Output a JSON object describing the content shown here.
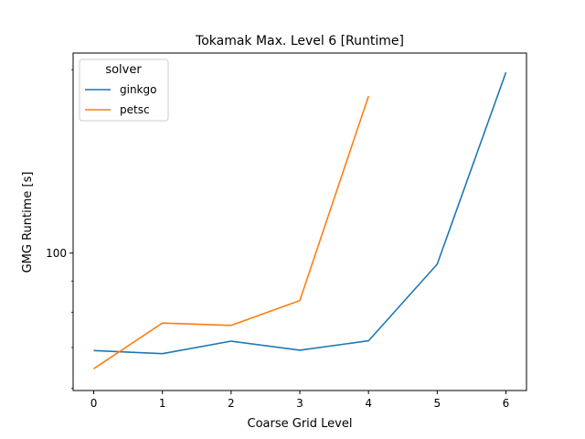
{
  "chart_data": {
    "type": "line",
    "title": "Tokamak Max. Level 6 [Runtime]",
    "xlabel": "Coarse Grid Level",
    "ylabel": "GMG Runtime [s]",
    "y_scale": "log",
    "xlim": [
      -0.3,
      6.3
    ],
    "ylim": [
      59.5,
      213
    ],
    "x_ticks": [
      0,
      1,
      2,
      3,
      4,
      5,
      6
    ],
    "y_ticks": [
      100
    ],
    "grid": false,
    "legend": {
      "title": "solver",
      "placement": "top-left"
    },
    "series": [
      {
        "name": "ginkgo",
        "color": "#1f77b4",
        "x": [
          0,
          1,
          2,
          3,
          4,
          5,
          6
        ],
        "y": [
          69.2,
          68.4,
          71.7,
          69.3,
          71.8,
          95.9,
          198
        ]
      },
      {
        "name": "petsc",
        "color": "#ff7f0e",
        "x": [
          0,
          1,
          2,
          3,
          4
        ],
        "y": [
          64.6,
          76.8,
          76.1,
          83.6,
          181
        ]
      }
    ]
  }
}
